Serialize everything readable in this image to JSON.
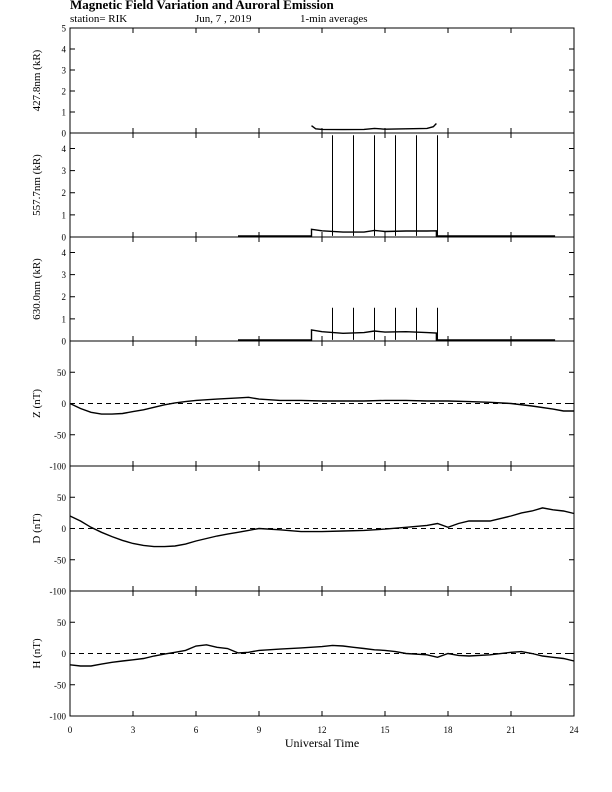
{
  "header": {
    "title": "Magnetic Field Variation and Auroral Emission",
    "station": "station= RIK",
    "date": "Jun, 7 , 2019",
    "averaging": "1-min averages"
  },
  "chart_data": [
    {
      "type": "line",
      "ylabel": "427.8nm (kR)",
      "ylim": [
        0,
        5
      ],
      "yticks": [
        0,
        1,
        2,
        3,
        4,
        5
      ],
      "xlim": [
        0,
        24
      ],
      "series": [
        {
          "x": [
            11.5,
            11.7,
            12.0,
            13.0,
            14.0,
            14.5,
            15.0,
            16.0,
            17.0,
            17.3,
            17.45
          ],
          "y": [
            0.35,
            0.2,
            0.17,
            0.16,
            0.17,
            0.22,
            0.18,
            0.2,
            0.22,
            0.3,
            0.45
          ]
        }
      ]
    },
    {
      "type": "line",
      "ylabel": "557.7nm (kR)",
      "ylim": [
        0,
        4.7
      ],
      "yticks": [
        0,
        1,
        2,
        3,
        4
      ],
      "xlim": [
        0,
        24
      ],
      "spikes": {
        "x": [
          12.5,
          13.5,
          14.5,
          15.5,
          16.5,
          17.5
        ],
        "y": 4.6
      },
      "series": [
        {
          "x": [
            8.0,
            11.5,
            11.5,
            12.0,
            13.0,
            14.0,
            14.5,
            15.0,
            16.0,
            17.0,
            17.45,
            17.45,
            23.1
          ],
          "y": [
            0.05,
            0.05,
            0.35,
            0.28,
            0.22,
            0.22,
            0.3,
            0.25,
            0.27,
            0.27,
            0.28,
            0.05,
            0.05
          ]
        }
      ]
    },
    {
      "type": "line",
      "ylabel": "630.0nm (kR)",
      "ylim": [
        0,
        4.7
      ],
      "yticks": [
        0,
        1,
        2,
        3,
        4
      ],
      "xlim": [
        0,
        24
      ],
      "spikes": {
        "x": [
          12.5,
          13.5,
          14.5,
          15.5,
          16.5,
          17.5
        ],
        "y": 1.5
      },
      "series": [
        {
          "x": [
            8.0,
            11.5,
            11.5,
            12.0,
            13.0,
            14.0,
            14.5,
            15.0,
            16.0,
            17.0,
            17.45,
            17.45,
            23.1
          ],
          "y": [
            0.05,
            0.05,
            0.5,
            0.42,
            0.35,
            0.38,
            0.45,
            0.4,
            0.42,
            0.38,
            0.36,
            0.05,
            0.05
          ]
        }
      ]
    },
    {
      "type": "line",
      "ylabel": "Z (nT)",
      "ylim": [
        -100,
        100
      ],
      "yticks": [
        -100,
        -50,
        0,
        50
      ],
      "xlim": [
        0,
        24
      ],
      "zero_line": true,
      "series": [
        {
          "x": [
            0,
            0.5,
            1.0,
            1.5,
            2.0,
            2.5,
            3.0,
            3.5,
            4.0,
            4.5,
            5.0,
            5.5,
            6.0,
            7.0,
            8.0,
            8.5,
            9.0,
            10.0,
            11.0,
            12.0,
            13.0,
            14.0,
            15.0,
            16.0,
            17.0,
            18.0,
            19.0,
            20.0,
            21.0,
            22.0,
            23.0,
            23.5,
            24.0
          ],
          "y": [
            0,
            -8,
            -14,
            -17,
            -17,
            -16,
            -13,
            -10,
            -6,
            -2,
            1,
            3,
            5,
            7,
            9,
            10,
            7,
            5,
            5,
            4,
            4,
            4,
            5,
            5,
            4,
            4,
            3,
            2,
            0,
            -4,
            -9,
            -12,
            -12
          ]
        }
      ]
    },
    {
      "type": "line",
      "ylabel": "D (nT)",
      "ylim": [
        -100,
        100
      ],
      "yticks": [
        -100,
        -50,
        0,
        50
      ],
      "xlim": [
        0,
        24
      ],
      "zero_line": true,
      "series": [
        {
          "x": [
            0,
            0.5,
            1.0,
            1.5,
            2.0,
            2.5,
            3.0,
            3.5,
            4.0,
            4.5,
            5.0,
            5.5,
            6.0,
            6.5,
            7.0,
            7.5,
            8.0,
            8.5,
            9.0,
            10.0,
            11.0,
            12.0,
            13.0,
            14.0,
            15.0,
            16.0,
            17.0,
            17.5,
            18.0,
            18.5,
            19.0,
            20.0,
            21.0,
            21.5,
            22.0,
            22.5,
            23.0,
            23.5,
            24.0
          ],
          "y": [
            20,
            12,
            2,
            -6,
            -13,
            -19,
            -24,
            -27,
            -29,
            -29,
            -28,
            -25,
            -20,
            -16,
            -12,
            -9,
            -6,
            -3,
            0,
            -2,
            -5,
            -5,
            -4,
            -3,
            -1,
            2,
            5,
            8,
            2,
            8,
            12,
            12,
            20,
            25,
            28,
            33,
            30,
            28,
            24
          ]
        }
      ]
    },
    {
      "type": "line",
      "ylabel": "H (nT)",
      "ylim": [
        -100,
        100
      ],
      "yticks": [
        -100,
        -50,
        0,
        50
      ],
      "xlim": [
        0,
        24
      ],
      "zero_line": true,
      "series": [
        {
          "x": [
            0,
            0.5,
            1.0,
            1.5,
            2.0,
            2.5,
            3.0,
            3.5,
            4.0,
            4.5,
            5.0,
            5.5,
            6.0,
            6.5,
            7.0,
            7.5,
            8.0,
            8.5,
            9.0,
            10.0,
            11.0,
            12.0,
            12.5,
            13.0,
            13.5,
            14.0,
            14.5,
            15.0,
            15.5,
            16.0,
            17.0,
            17.5,
            18.0,
            18.5,
            19.0,
            20.0,
            21.0,
            21.5,
            22.0,
            22.5,
            23.0,
            23.5,
            24.0
          ],
          "y": [
            -18,
            -20,
            -20,
            -17,
            -14,
            -12,
            -10,
            -8,
            -4,
            -1,
            2,
            5,
            12,
            14,
            10,
            8,
            1,
            2,
            5,
            7,
            9,
            11,
            13,
            12,
            10,
            8,
            6,
            5,
            3,
            0,
            -2,
            -6,
            0,
            -3,
            -4,
            -2,
            2,
            3,
            0,
            -4,
            -6,
            -8,
            -12
          ]
        }
      ]
    }
  ],
  "xaxis": {
    "label": "Universal Time",
    "ticks": [
      0,
      3,
      6,
      9,
      12,
      15,
      18,
      21,
      24
    ],
    "range": [
      0,
      24
    ]
  }
}
